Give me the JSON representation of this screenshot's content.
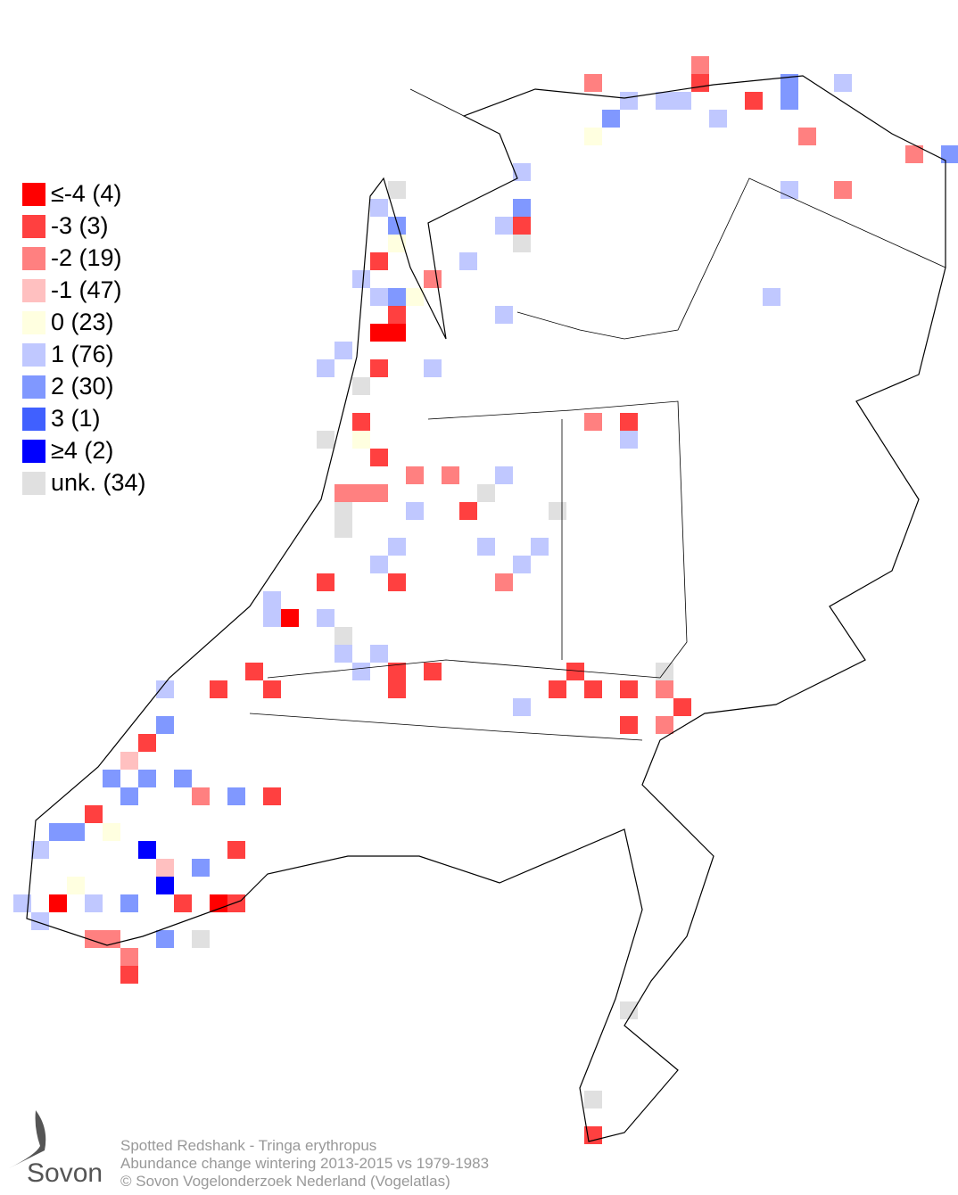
{
  "legend": {
    "items": [
      "≤-4 (4)",
      "-3 (3)",
      "-2 (19)",
      "-1 (47)",
      " 0 (23)",
      " 1 (76)",
      " 2 (30)",
      " 3 (1)",
      "≥4 (2)",
      "unk. (34)"
    ]
  },
  "footer": {
    "species": "Spotted Redshank - Tringa erythropus",
    "subtitle": "Abundance change wintering  2013-2015 vs 1979-1983",
    "copyright": "© Sovon Vogelonderzoek Nederland (Vogelatlas)"
  },
  "logo": {
    "text": "Sovon"
  }
}
